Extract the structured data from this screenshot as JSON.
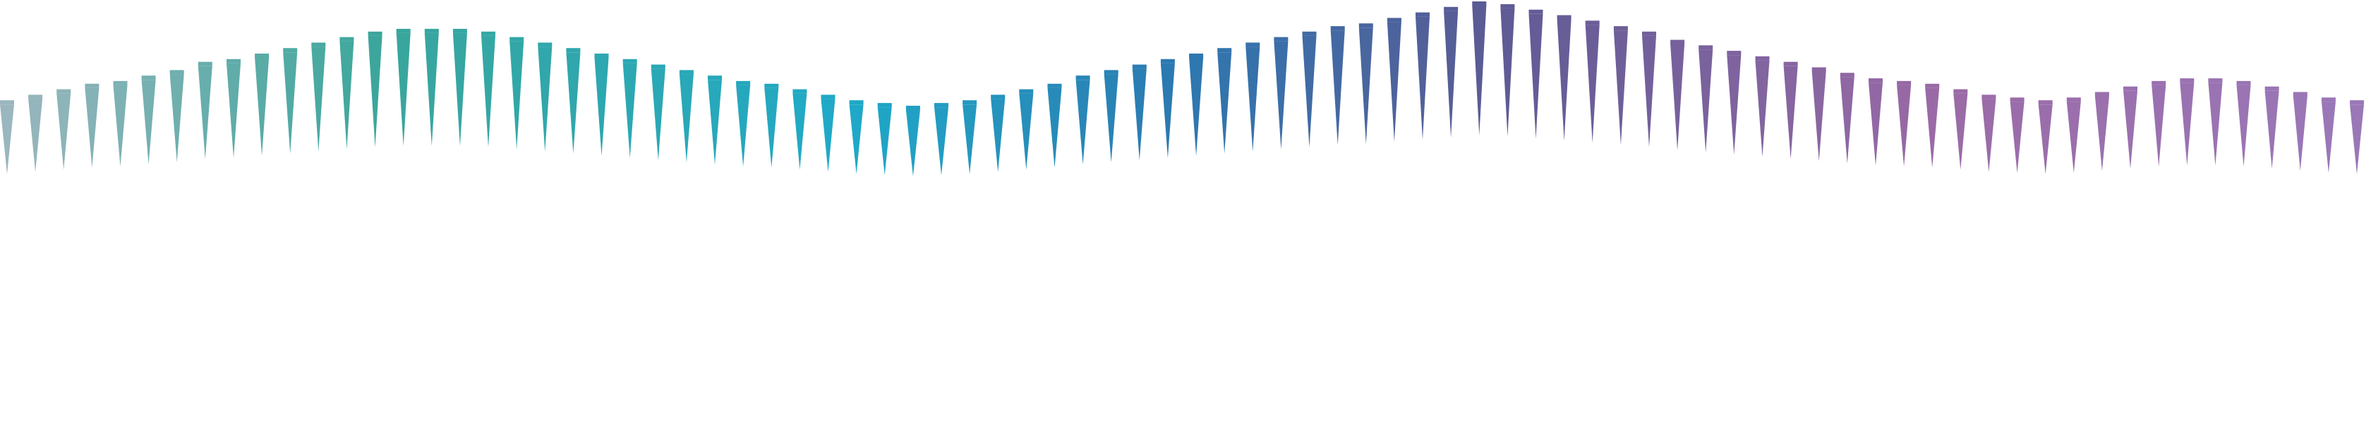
{
  "graphic": {
    "kind": "decorative-spike-wave",
    "spike_count": 84,
    "heights": [
      0.58,
      0.6,
      0.62,
      0.64,
      0.65,
      0.67,
      0.69,
      0.72,
      0.73,
      0.75,
      0.77,
      0.79,
      0.81,
      0.83,
      0.84,
      0.84,
      0.84,
      0.83,
      0.81,
      0.79,
      0.77,
      0.75,
      0.73,
      0.71,
      0.69,
      0.67,
      0.65,
      0.64,
      0.62,
      0.6,
      0.58,
      0.57,
      0.56,
      0.57,
      0.58,
      0.6,
      0.62,
      0.64,
      0.67,
      0.69,
      0.71,
      0.73,
      0.75,
      0.77,
      0.79,
      0.81,
      0.83,
      0.85,
      0.86,
      0.88,
      0.9,
      0.92,
      0.94,
      0.93,
      0.91,
      0.89,
      0.87,
      0.85,
      0.83,
      0.8,
      0.78,
      0.76,
      0.74,
      0.72,
      0.7,
      0.68,
      0.66,
      0.65,
      0.64,
      0.62,
      0.6,
      0.59,
      0.58,
      0.59,
      0.61,
      0.63,
      0.65,
      0.66,
      0.66,
      0.65,
      0.63,
      0.61,
      0.59,
      0.58
    ],
    "palette": {
      "start": "#9ab6be",
      "teal": "#3aa69b",
      "cyan": "#1fa9c8",
      "blue": "#2c78b0",
      "indigo": "#5c5a94",
      "violet": "#9a6aa6",
      "end": "#9a78b8"
    }
  }
}
